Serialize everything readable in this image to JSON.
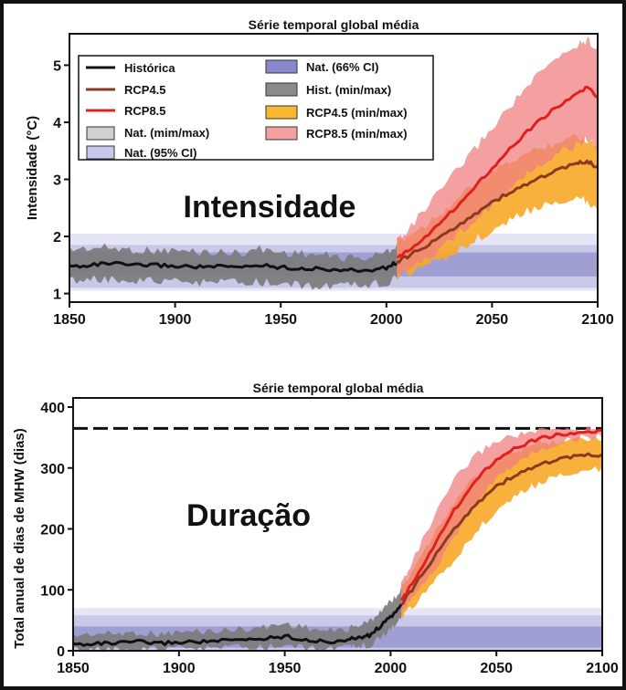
{
  "chart_data": [
    {
      "type": "line",
      "title": "Série temporal global média",
      "ylabel": "Intensidade (°C)",
      "xlabel": "",
      "annotation": "Intensidade",
      "xlim": [
        1850,
        2100
      ],
      "ylim": [
        0.85,
        5.55
      ],
      "x_ticks": [
        1850,
        1900,
        1950,
        2000,
        2050,
        2100
      ],
      "y_ticks": [
        1,
        2,
        3,
        4,
        5
      ],
      "legend_position": "top-left",
      "legend": [
        {
          "label": "Histórica",
          "kind": "line",
          "color": "#111111"
        },
        {
          "label": "RCP4.5",
          "kind": "line",
          "color": "#8b3a1e"
        },
        {
          "label": "RCP8.5",
          "kind": "line",
          "color": "#e02020"
        },
        {
          "label": "Nat. (mim/max)",
          "kind": "box",
          "color": "#d0d0d0"
        },
        {
          "label": "Nat. (95% CI)",
          "kind": "box",
          "color": "#c8c8ec"
        },
        {
          "label": "Nat. (66% CI)",
          "kind": "box",
          "color": "#8888cc"
        },
        {
          "label": "Hist. (min/max)",
          "kind": "box",
          "color": "#8a8a8a"
        },
        {
          "label": "RCP4.5 (min/max)",
          "kind": "box",
          "color": "#f7b733"
        },
        {
          "label": "RCP8.5 (min/max)",
          "kind": "box",
          "color": "#f2a0a0"
        }
      ],
      "nat_bands": {
        "minmax": [
          1.05,
          2.05
        ],
        "ci95": [
          1.1,
          1.85
        ],
        "ci66": [
          1.3,
          1.72
        ]
      },
      "series": [
        {
          "name": "Histórica",
          "color": "#111111",
          "x": [
            1850,
            1860,
            1870,
            1880,
            1890,
            1900,
            1910,
            1920,
            1930,
            1940,
            1950,
            1960,
            1970,
            1980,
            1990,
            2000,
            2005
          ],
          "values": [
            1.47,
            1.5,
            1.53,
            1.49,
            1.5,
            1.48,
            1.47,
            1.47,
            1.46,
            1.5,
            1.46,
            1.44,
            1.43,
            1.41,
            1.4,
            1.45,
            1.55
          ],
          "min": [
            1.22,
            1.26,
            1.25,
            1.24,
            1.22,
            1.2,
            1.19,
            1.2,
            1.18,
            1.2,
            1.16,
            1.15,
            1.13,
            1.12,
            1.15,
            1.2,
            1.27
          ],
          "max": [
            1.77,
            1.8,
            1.8,
            1.76,
            1.75,
            1.75,
            1.73,
            1.72,
            1.71,
            1.78,
            1.72,
            1.7,
            1.67,
            1.63,
            1.62,
            1.72,
            1.85
          ]
        },
        {
          "name": "RCP4.5",
          "color": "#8b3a1e",
          "x": [
            2005,
            2010,
            2020,
            2030,
            2040,
            2050,
            2060,
            2070,
            2080,
            2090,
            2095,
            2100
          ],
          "values": [
            1.55,
            1.65,
            1.85,
            2.1,
            2.35,
            2.6,
            2.8,
            2.98,
            3.15,
            3.27,
            3.32,
            3.2
          ],
          "min": [
            1.3,
            1.35,
            1.5,
            1.7,
            1.9,
            2.1,
            2.3,
            2.5,
            2.6,
            2.7,
            2.6,
            2.5
          ],
          "max": [
            1.9,
            2.0,
            2.25,
            2.55,
            2.85,
            3.1,
            3.35,
            3.5,
            3.65,
            3.75,
            3.7,
            3.6
          ]
        },
        {
          "name": "RCP8.5",
          "color": "#e02020",
          "x": [
            2005,
            2010,
            2020,
            2030,
            2040,
            2050,
            2060,
            2070,
            2080,
            2090,
            2095,
            2100
          ],
          "values": [
            1.6,
            1.75,
            2.05,
            2.4,
            2.8,
            3.2,
            3.6,
            3.95,
            4.25,
            4.5,
            4.6,
            4.45
          ],
          "min": [
            1.3,
            1.4,
            1.65,
            1.9,
            2.2,
            2.55,
            2.9,
            3.2,
            3.45,
            3.6,
            3.7,
            3.55
          ],
          "max": [
            1.95,
            2.1,
            2.55,
            3.0,
            3.45,
            3.9,
            4.35,
            4.75,
            5.1,
            5.35,
            5.45,
            5.3
          ]
        }
      ]
    },
    {
      "type": "line",
      "title": "Série temporal global média",
      "ylabel": "Total anual de dias de MHW (dias)",
      "xlabel": "",
      "annotation": "Duração",
      "xlim": [
        1850,
        2100
      ],
      "ylim": [
        0,
        400
      ],
      "x_ticks": [
        1850,
        1900,
        1950,
        2000,
        2050,
        2100
      ],
      "y_ticks": [
        0,
        100,
        200,
        300,
        400
      ],
      "reference_line": 365,
      "nat_bands": {
        "minmax": [
          0,
          70
        ],
        "ci95": [
          0,
          58
        ],
        "ci66": [
          5,
          40
        ]
      },
      "series": [
        {
          "name": "Histórica",
          "color": "#111111",
          "x": [
            1850,
            1860,
            1870,
            1880,
            1890,
            1900,
            1910,
            1920,
            1930,
            1940,
            1950,
            1960,
            1970,
            1980,
            1985,
            1990,
            1995,
            2000,
            2005
          ],
          "values": [
            10,
            12,
            12,
            15,
            12,
            14,
            15,
            16,
            18,
            20,
            24,
            18,
            14,
            18,
            22,
            25,
            40,
            55,
            75
          ],
          "min": [
            2,
            3,
            3,
            4,
            3,
            4,
            4,
            5,
            5,
            6,
            8,
            5,
            4,
            5,
            8,
            10,
            20,
            35,
            55
          ],
          "max": [
            25,
            28,
            28,
            30,
            27,
            30,
            32,
            33,
            36,
            38,
            45,
            38,
            32,
            36,
            42,
            48,
            65,
            80,
            100
          ]
        },
        {
          "name": "RCP4.5",
          "color": "#8b3a1e",
          "x": [
            2005,
            2010,
            2020,
            2030,
            2040,
            2050,
            2060,
            2070,
            2080,
            2090,
            2100
          ],
          "values": [
            75,
            100,
            150,
            200,
            240,
            270,
            290,
            305,
            315,
            320,
            322
          ],
          "min": [
            55,
            70,
            110,
            150,
            195,
            230,
            255,
            275,
            290,
            295,
            298
          ],
          "max": [
            100,
            130,
            190,
            245,
            285,
            310,
            330,
            340,
            345,
            348,
            350
          ]
        },
        {
          "name": "RCP8.5",
          "color": "#e02020",
          "x": [
            2005,
            2010,
            2020,
            2030,
            2040,
            2050,
            2060,
            2070,
            2080,
            2090,
            2100
          ],
          "values": [
            80,
            110,
            170,
            230,
            280,
            315,
            335,
            348,
            355,
            358,
            360
          ],
          "min": [
            60,
            85,
            130,
            185,
            240,
            285,
            310,
            330,
            342,
            350,
            352
          ],
          "max": [
            110,
            145,
            215,
            280,
            320,
            345,
            355,
            360,
            363,
            364,
            365
          ]
        }
      ]
    }
  ]
}
